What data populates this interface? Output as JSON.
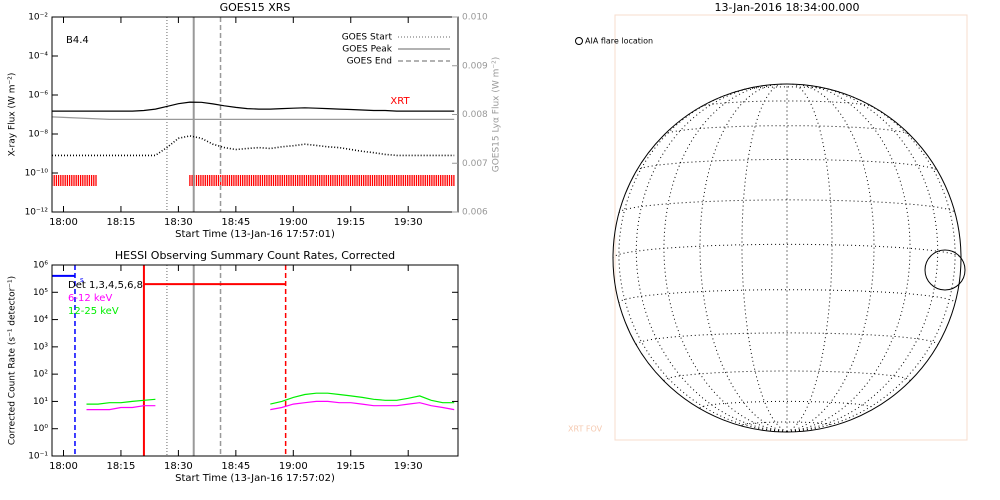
{
  "chart_data": [
    {
      "type": "line",
      "title": "GOES15 XRS",
      "xlabel": "Start Time (13-Jan-16 17:57:01)",
      "ylabel": "X-ray Flux (W m⁻²)",
      "y2label": "GOES15 Lyα Flux (W m⁻²)",
      "ylog": true,
      "ylim": [
        1e-12,
        0.01
      ],
      "yticks": [
        {
          "value": 0.01,
          "label": "10⁻²"
        },
        {
          "value": 0.0001,
          "label": "10⁻⁴"
        },
        {
          "value": 1e-06,
          "label": "10⁻⁶"
        },
        {
          "value": 1e-08,
          "label": "10⁻⁸"
        },
        {
          "value": 1e-10,
          "label": "10⁻¹⁰"
        },
        {
          "value": 1e-12,
          "label": "10⁻¹²"
        }
      ],
      "y2lim": [
        0.006,
        0.01
      ],
      "y2ticks": [
        {
          "value": 0.01,
          "label": "0.010"
        },
        0.009,
        0.008,
        0.007,
        0.006
      ],
      "xlim": [
        "17:57",
        "19:43"
      ],
      "xticks": [
        "18:00",
        "18:15",
        "18:30",
        "18:45",
        "19:00",
        "19:15",
        "19:30"
      ],
      "x": [
        "17:57",
        "18:00",
        "18:03",
        "18:06",
        "18:09",
        "18:12",
        "18:15",
        "18:18",
        "18:21",
        "18:24",
        "18:27",
        "18:30",
        "18:33",
        "18:36",
        "18:39",
        "18:42",
        "18:45",
        "18:48",
        "18:51",
        "18:54",
        "18:57",
        "19:00",
        "19:03",
        "19:06",
        "19:09",
        "19:12",
        "19:15",
        "19:18",
        "19:21",
        "19:24",
        "19:27",
        "19:30",
        "19:33",
        "19:36",
        "19:39",
        "19:42"
      ],
      "series": [
        {
          "color": "#000000",
          "linestyle": "solid",
          "values": [
            1.5e-07,
            1.5e-07,
            1.5e-07,
            1.5e-07,
            1.5e-07,
            1.5e-07,
            1.5e-07,
            1.5e-07,
            1.6e-07,
            1.9e-07,
            2.6e-07,
            3.6e-07,
            4.3e-07,
            4.2e-07,
            3.5e-07,
            2.8e-07,
            2.3e-07,
            2e-07,
            1.9e-07,
            1.9e-07,
            2e-07,
            2.1e-07,
            2.2e-07,
            2.1e-07,
            2e-07,
            1.9e-07,
            1.8e-07,
            1.7e-07,
            1.6e-07,
            1.6e-07,
            1.5e-07,
            1.5e-07,
            1.5e-07,
            1.5e-07,
            1.5e-07,
            1.5e-07
          ]
        },
        {
          "color": "#000000",
          "linestyle": "dotted",
          "values": [
            8e-10,
            8e-10,
            8e-10,
            8e-10,
            8e-10,
            8e-10,
            8e-10,
            8e-10,
            8e-10,
            8e-10,
            2e-09,
            6e-09,
            8e-09,
            6e-09,
            3e-09,
            2e-09,
            1.6e-09,
            1.8e-09,
            2e-09,
            1.8e-09,
            2.2e-09,
            2.5e-09,
            3e-09,
            2.6e-09,
            2.2e-09,
            2e-09,
            1.6e-09,
            1.3e-09,
            1.1e-09,
            9e-10,
            8e-10,
            8e-10,
            8e-10,
            8e-10,
            8e-10,
            8e-10
          ]
        },
        {
          "color": "#999999",
          "linestyle": "solid",
          "axis": "y2",
          "values": [
            0.00795,
            0.00794,
            0.00793,
            0.00792,
            0.00791,
            0.0079,
            0.0079,
            0.0079,
            0.0079,
            0.0079,
            0.0079,
            0.0079,
            0.0079,
            0.0079,
            0.0079,
            0.0079,
            0.0079,
            0.0079,
            0.0079,
            0.0079,
            0.0079,
            0.0079,
            0.0079,
            0.0079,
            0.0079,
            0.0079,
            0.0079,
            0.0079,
            0.0079,
            0.0079,
            0.0079,
            0.0079,
            0.0079,
            0.0079,
            0.0079,
            0.0079
          ]
        }
      ],
      "vlines": [
        {
          "name": "GOES Start",
          "x": "18:27",
          "color": "#999999",
          "linestyle": "dotted"
        },
        {
          "name": "GOES Peak",
          "x": "18:34",
          "color": "#999999",
          "linestyle": "solid"
        },
        {
          "name": "GOES End",
          "x": "18:41",
          "color": "#999999",
          "linestyle": "dashed"
        }
      ],
      "legend": "upper right",
      "xrt": {
        "label": "XRT",
        "color": "#ff0000",
        "intervals": [
          [
            "17:57",
            "18:09"
          ],
          [
            "18:33",
            "19:42"
          ]
        ]
      },
      "annotations": [
        "B4.4"
      ]
    },
    {
      "type": "line",
      "title": "HESSI Observing Summary Count Rates, Corrected",
      "xlabel": "Start Time (13-Jan-16 17:57:02)",
      "ylabel": "Corrected Count Rate (s⁻¹ detector⁻¹)",
      "ylog": true,
      "ylim": [
        0.1,
        1000000
      ],
      "yticks": [
        {
          "value": 1000000,
          "label": "10⁶"
        },
        {
          "value": 100000,
          "label": "10⁵"
        },
        {
          "value": 10000,
          "label": "10⁴"
        },
        {
          "value": 1000,
          "label": "10³"
        },
        {
          "value": 100,
          "label": "10²"
        },
        {
          "value": 10,
          "label": "10¹"
        },
        {
          "value": 1,
          "label": "10⁰"
        },
        {
          "value": 0.1,
          "label": "10⁻¹"
        }
      ],
      "xlim": [
        "17:57",
        "19:43"
      ],
      "xticks": [
        "18:00",
        "18:15",
        "18:30",
        "18:45",
        "19:00",
        "19:15",
        "19:30"
      ],
      "x": [
        "17:57",
        "18:00",
        "18:03",
        "18:06",
        "18:09",
        "18:12",
        "18:15",
        "18:18",
        "18:21",
        "18:24",
        "18:27",
        "18:30",
        "18:33",
        "18:36",
        "18:39",
        "18:42",
        "18:45",
        "18:48",
        "18:51",
        "18:54",
        "18:57",
        "19:00",
        "19:03",
        "19:06",
        "19:09",
        "19:12",
        "19:15",
        "19:18",
        "19:21",
        "19:24",
        "19:27",
        "19:30",
        "19:33",
        "19:36",
        "19:39",
        "19:42"
      ],
      "series": [
        {
          "name": "6-12 keV",
          "color": "#ff00ff",
          "linestyle": "solid",
          "values": [
            null,
            null,
            null,
            5,
            5,
            5,
            6,
            6,
            7,
            7,
            null,
            null,
            null,
            null,
            null,
            null,
            null,
            null,
            null,
            5,
            6,
            8,
            9,
            10,
            10,
            9,
            9,
            8,
            7,
            7,
            7,
            8,
            9,
            7,
            6,
            5
          ]
        },
        {
          "name": "12-25 keV",
          "color": "#00ee00",
          "linestyle": "solid",
          "values": [
            null,
            null,
            null,
            8,
            8,
            9,
            9,
            10,
            11,
            12,
            null,
            null,
            null,
            null,
            null,
            null,
            null,
            null,
            null,
            8,
            10,
            14,
            18,
            20,
            20,
            18,
            16,
            14,
            12,
            11,
            11,
            13,
            16,
            11,
            9,
            9
          ]
        }
      ],
      "vlines": [
        {
          "x": "18:03",
          "color": "#0000ff",
          "linestyle": "dashed"
        },
        {
          "x": "18:21",
          "color": "#ff0000",
          "linestyle": "solid"
        },
        {
          "x": "18:27",
          "color": "#999999",
          "linestyle": "dotted"
        },
        {
          "x": "18:34",
          "color": "#999999",
          "linestyle": "solid"
        },
        {
          "x": "18:41",
          "color": "#999999",
          "linestyle": "dashed"
        },
        {
          "x": "18:58",
          "color": "#ff0000",
          "linestyle": "dashed"
        }
      ],
      "segments": [
        {
          "color": "#0000ff",
          "value": 400000,
          "x": [
            "17:57",
            "18:03"
          ]
        },
        {
          "color": "#ff0000",
          "value": 200000,
          "x": [
            "18:21",
            "18:58"
          ]
        }
      ],
      "legend": "upper left",
      "legend_header": "Det 1,3,4,5,6,8",
      "annotations": [
        "s"
      ]
    },
    {
      "type": "image",
      "title": "13-Jan-2016 18:34:00.000",
      "annotations": [
        "AIA flare location",
        "XRT FOV"
      ]
    }
  ]
}
